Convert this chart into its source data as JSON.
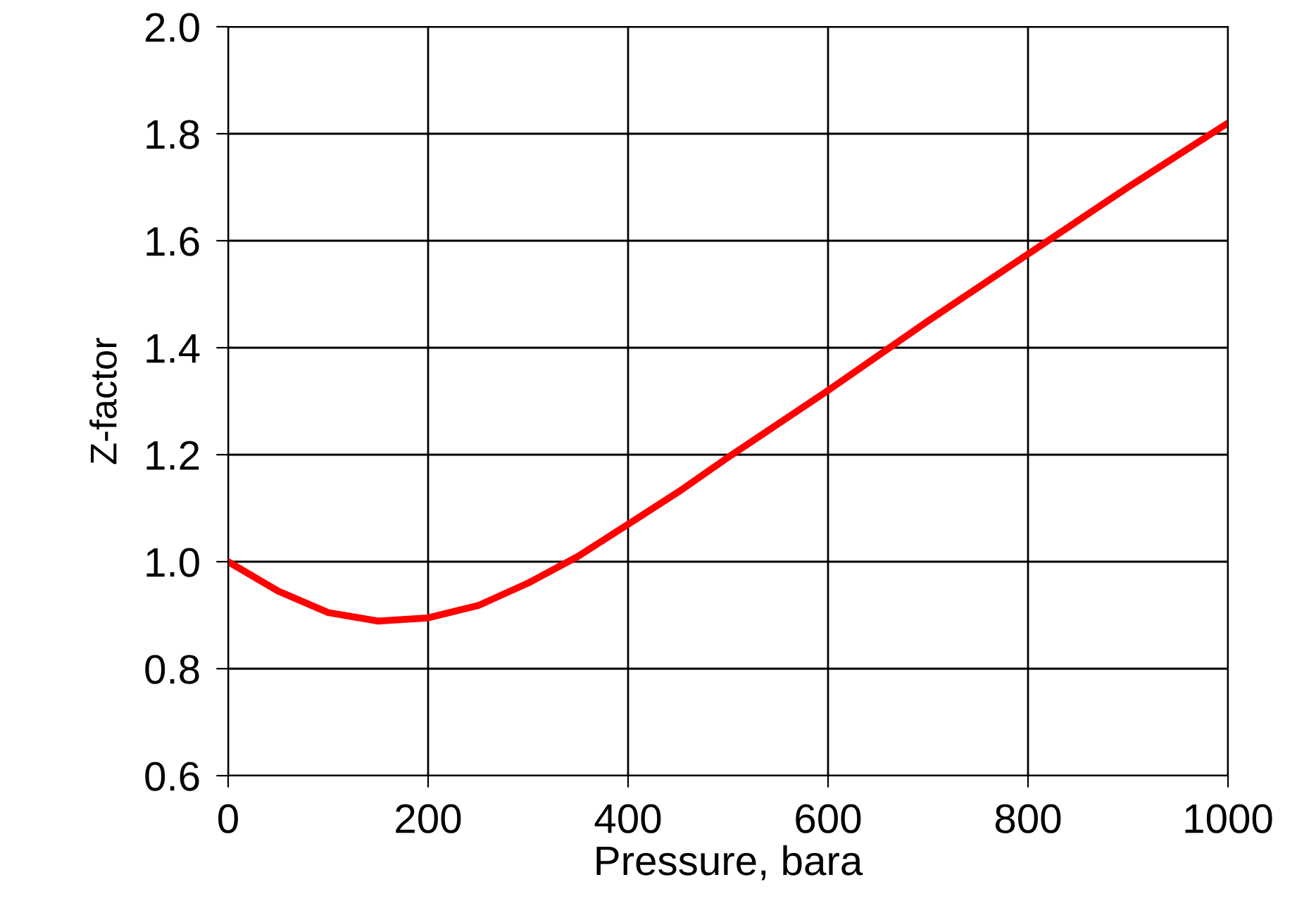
{
  "chart_data": {
    "type": "line",
    "xlabel": "Pressure, bara",
    "ylabel": "Z-factor",
    "x": [
      0,
      50,
      100,
      150,
      200,
      250,
      300,
      350,
      400,
      450,
      500,
      600,
      700,
      800,
      900,
      1000
    ],
    "series": [
      {
        "color": "#ff0000",
        "values": [
          1.0,
          0.945,
          0.905,
          0.889,
          0.895,
          0.918,
          0.96,
          1.01,
          1.07,
          1.13,
          1.195,
          1.32,
          1.45,
          1.575,
          1.7,
          1.82
        ]
      }
    ],
    "xlim": [
      0,
      1000
    ],
    "ylim": [
      0.6,
      2.0
    ],
    "xticks": [
      0,
      200,
      400,
      600,
      800,
      1000
    ],
    "yticks": [
      {
        "value": 0.6,
        "label": "0.6"
      },
      {
        "value": 0.8,
        "label": "0.8"
      },
      {
        "value": 1.0,
        "label": "1.0"
      },
      {
        "value": 1.2,
        "label": "1.2"
      },
      {
        "value": 1.4,
        "label": "1.4"
      },
      {
        "value": 1.6,
        "label": "1.6"
      },
      {
        "value": 1.8,
        "label": "1.8"
      },
      {
        "value": 2.0,
        "label": "2.0"
      }
    ],
    "grid": true,
    "line_style": "solid",
    "marker": "none",
    "legend": false
  }
}
